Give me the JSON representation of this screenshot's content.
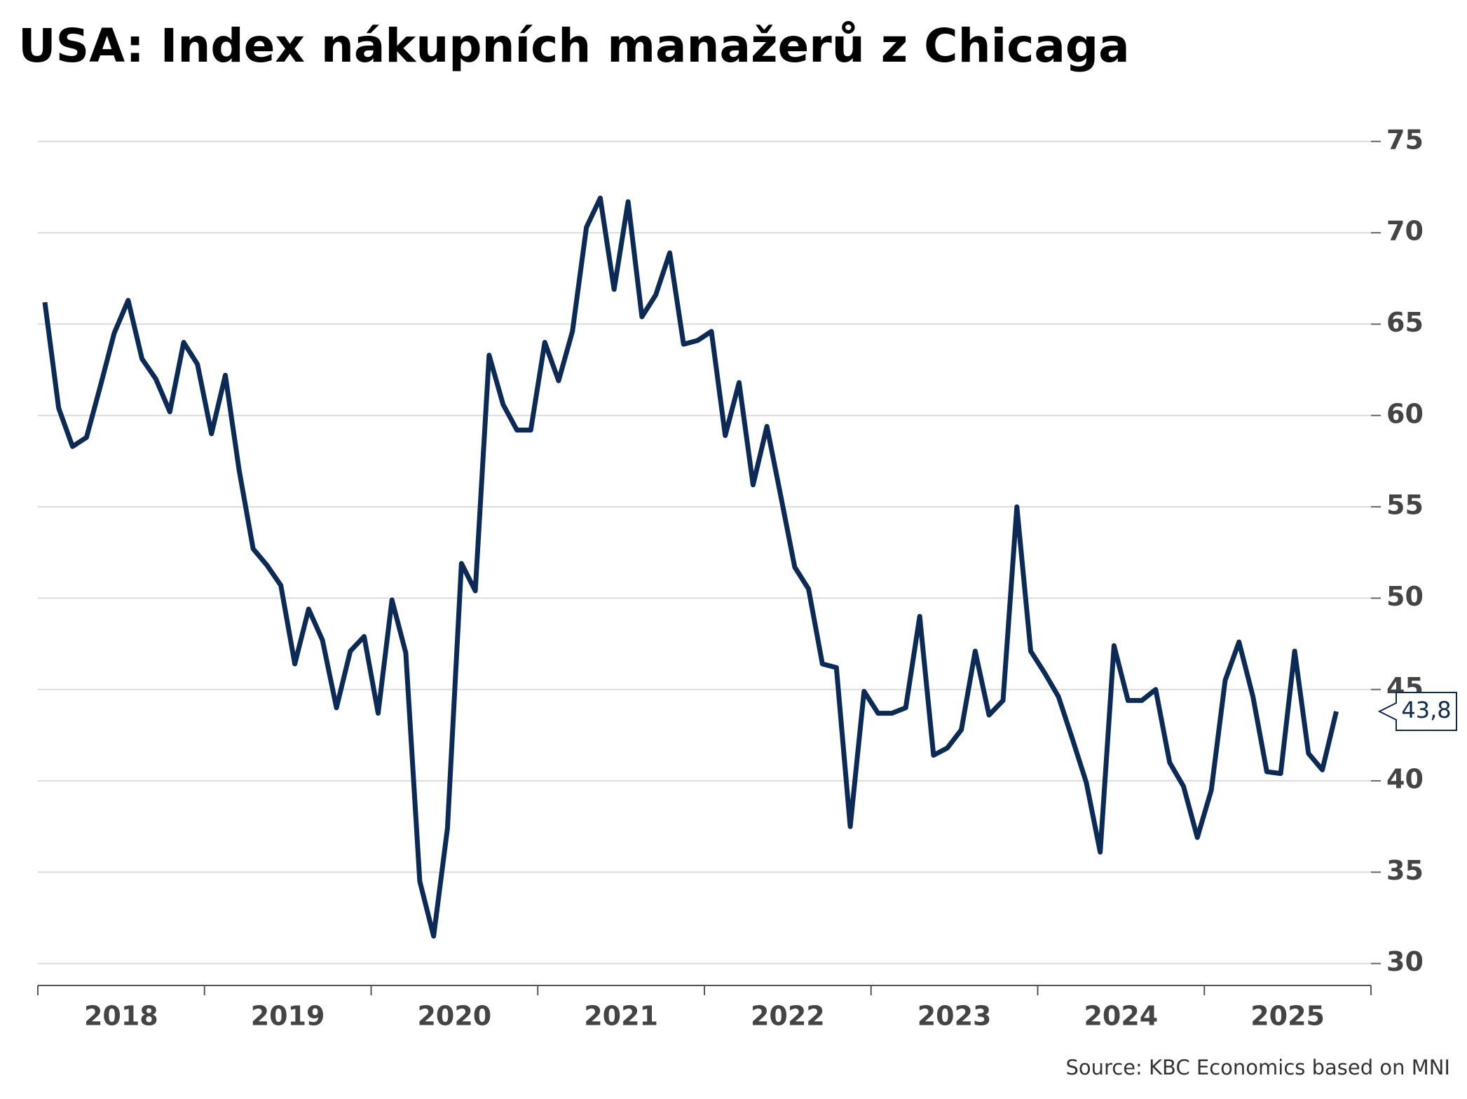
{
  "chart_data": {
    "type": "line",
    "title": "USA: Index nákupních manažerů z Chicaga",
    "source": "Source: KBC Economics based on MNI",
    "x": [
      2018.042,
      2018.125,
      2018.208,
      2018.292,
      2018.375,
      2018.458,
      2018.542,
      2018.625,
      2018.708,
      2018.792,
      2018.875,
      2018.958,
      2019.042,
      2019.125,
      2019.208,
      2019.292,
      2019.375,
      2019.458,
      2019.542,
      2019.625,
      2019.708,
      2019.792,
      2019.875,
      2019.958,
      2020.042,
      2020.125,
      2020.208,
      2020.292,
      2020.375,
      2020.458,
      2020.542,
      2020.625,
      2020.708,
      2020.792,
      2020.875,
      2020.958,
      2021.042,
      2021.125,
      2021.208,
      2021.292,
      2021.375,
      2021.458,
      2021.542,
      2021.625,
      2021.708,
      2021.792,
      2021.875,
      2021.958,
      2022.042,
      2022.125,
      2022.208,
      2022.292,
      2022.375,
      2022.458,
      2022.542,
      2022.625,
      2022.708,
      2022.792,
      2022.875,
      2022.958,
      2023.042,
      2023.125,
      2023.208,
      2023.292,
      2023.375,
      2023.458,
      2023.542,
      2023.625,
      2023.708,
      2023.792,
      2023.875,
      2023.958,
      2024.042,
      2024.125,
      2024.208,
      2024.292,
      2024.375,
      2024.458,
      2024.542,
      2024.625,
      2024.708,
      2024.792,
      2024.875,
      2024.958,
      2025.042,
      2025.125,
      2025.208,
      2025.292,
      2025.375,
      2025.458,
      2025.542,
      2025.625,
      2025.708,
      2025.792
    ],
    "series": [
      {
        "color": "#0b2a55",
        "values": [
          66.2,
          60.4,
          58.3,
          58.8,
          61.6,
          64.5,
          66.3,
          63.1,
          62.0,
          60.2,
          64.0,
          62.8,
          59.0,
          62.2,
          57.0,
          52.7,
          51.8,
          50.7,
          46.4,
          49.4,
          47.7,
          44.0,
          47.1,
          47.9,
          43.7,
          49.9,
          47.0,
          34.5,
          31.5,
          37.4,
          51.9,
          50.4,
          63.3,
          60.6,
          59.2,
          59.2,
          64.0,
          61.9,
          64.6,
          70.3,
          71.9,
          66.9,
          71.7,
          65.4,
          66.6,
          68.9,
          63.9,
          64.1,
          64.6,
          58.9,
          61.8,
          56.2,
          59.4,
          55.6,
          51.7,
          50.5,
          46.4,
          46.2,
          37.5,
          44.9,
          43.7,
          43.7,
          44.0,
          49.0,
          41.4,
          41.8,
          42.8,
          47.1,
          43.6,
          44.4,
          55.0,
          47.1,
          45.9,
          44.6,
          42.3,
          39.9,
          36.1,
          47.4,
          44.4,
          44.4,
          45.0,
          41.0,
          39.7,
          36.9,
          39.5,
          45.5,
          47.6,
          44.6,
          40.5,
          40.4,
          47.1,
          41.5,
          40.6,
          43.8
        ],
        "value_labels": [
          null,
          null,
          null,
          null,
          null,
          null,
          null,
          null,
          null,
          null,
          null,
          null,
          null,
          null,
          null,
          null,
          null,
          null,
          null,
          null,
          null,
          null,
          null,
          null,
          null,
          null,
          null,
          null,
          null,
          null,
          null,
          null,
          null,
          null,
          null,
          null,
          null,
          null,
          null,
          null,
          null,
          null,
          null,
          null,
          null,
          null,
          null,
          null,
          null,
          null,
          null,
          null,
          null,
          null,
          null,
          null,
          null,
          null,
          null,
          null,
          null,
          null,
          null,
          null,
          null,
          null,
          null,
          null,
          null,
          null,
          null,
          null,
          null,
          null,
          null,
          null,
          null,
          null,
          null,
          null,
          null,
          null,
          null,
          null,
          null,
          null,
          null,
          null,
          null,
          null,
          null,
          null,
          null,
          "43,8"
        ]
      }
    ],
    "xlim": [
      2018,
      2026
    ],
    "xticks": [
      2018,
      2019,
      2020,
      2021,
      2022,
      2023,
      2024,
      2025,
      2026
    ],
    "year_labels": [
      "2018",
      "2019",
      "2020",
      "2021",
      "2022",
      "2023",
      "2024",
      "2025"
    ],
    "ylim": [
      28.8,
      77.6
    ],
    "yticks": [
      30,
      35,
      40,
      45,
      50,
      55,
      60,
      65,
      70,
      75
    ],
    "grid": true
  }
}
